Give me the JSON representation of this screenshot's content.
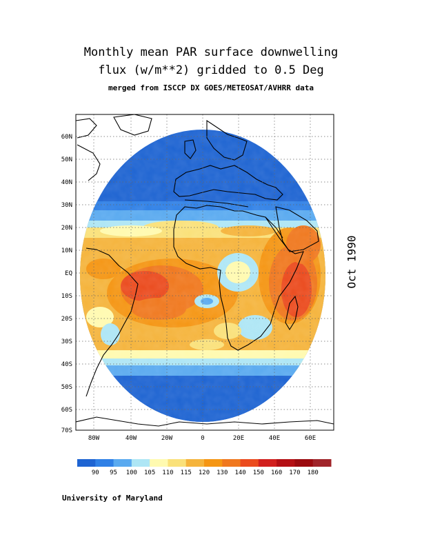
{
  "title_line1": "Monthly mean PAR surface downwelling",
  "title_line2": "flux (w/m**2) gridded to 0.5 Deg",
  "title_line3": "merged from ISCCP DX GOES/METEOSAT/AVHRR data",
  "date": "Oct 1990",
  "credit": "University of Maryland",
  "lat_ticks": [
    "60N",
    "50N",
    "40N",
    "30N",
    "20N",
    "10N",
    "EQ",
    "10S",
    "20S",
    "30S",
    "40S",
    "50S",
    "60S",
    "70S"
  ],
  "lon_ticks": [
    "80W",
    "40W",
    "20W",
    "0",
    "20E",
    "40E",
    "60E"
  ],
  "colorbar": {
    "colors": [
      "#1e64d2",
      "#2f80e6",
      "#5aaaf0",
      "#aee6f5",
      "#fffab0",
      "#fae17a",
      "#f5b43c",
      "#f59614",
      "#f0781e",
      "#eb4b1e",
      "#d2201e",
      "#b40f14",
      "#9b0a0f",
      "#a0242a"
    ],
    "labels": [
      "90",
      "95",
      "100",
      "105",
      "110",
      "115",
      "120",
      "130",
      "140",
      "150",
      "160",
      "170",
      "180"
    ]
  }
}
